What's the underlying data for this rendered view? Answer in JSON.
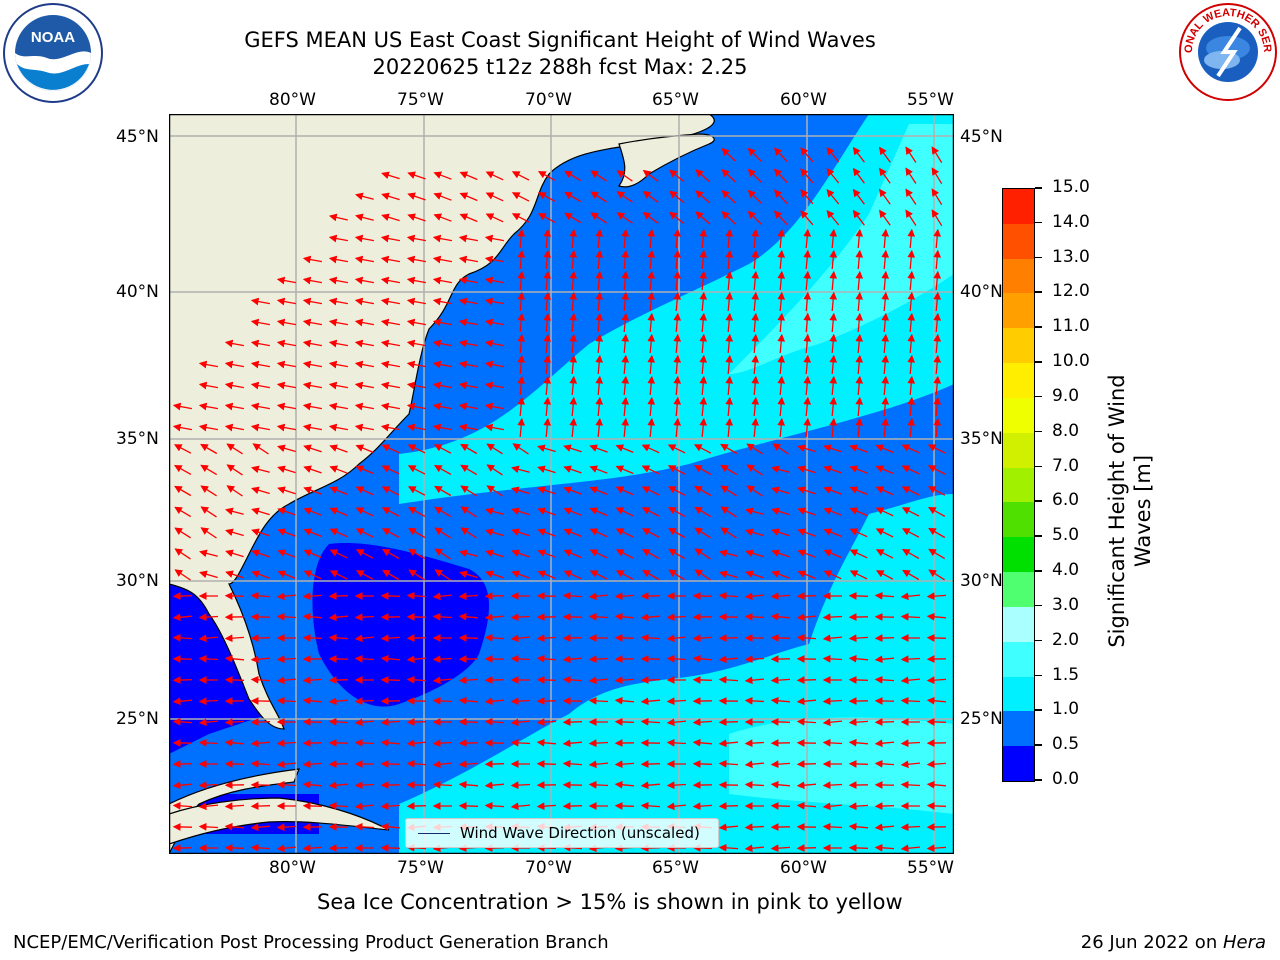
{
  "title": {
    "line1": "GEFS MEAN US East Coast Significant Height of Wind Waves",
    "line2": "20220625 t12z 288h fcst   Max: 2.25"
  },
  "logos": {
    "left": {
      "text": "NOAA",
      "icon": "noaa-logo"
    },
    "right": {
      "text": "NATIONAL WEATHER SERVICE",
      "icon": "nws-logo"
    }
  },
  "map": {
    "lon_labels": [
      "80°W",
      "75°W",
      "70°W",
      "65°W",
      "60°W",
      "55°W"
    ],
    "lat_labels": [
      "45°N",
      "40°N",
      "35°N",
      "30°N",
      "25°N"
    ],
    "legend_label": "Wind Wave Direction (unscaled)",
    "colors": {
      "land": "#eeeedc",
      "arrow": "#ff0000",
      "grid": "#b0b0b0",
      "coast": "#000000"
    }
  },
  "colorbar": {
    "label": "Significant Height of Wind Waves [m]",
    "ticks": [
      "0.0",
      "0.5",
      "1.0",
      "1.5",
      "2.0",
      "3.0",
      "4.0",
      "5.0",
      "6.0",
      "7.0",
      "8.0",
      "9.0",
      "10.0",
      "11.0",
      "12.0",
      "13.0",
      "14.0",
      "15.0"
    ],
    "colors": [
      "#0000ff",
      "#0070ff",
      "#00f0ff",
      "#40ffff",
      "#aaffff",
      "#50ff70",
      "#00e000",
      "#50e000",
      "#a0f000",
      "#d0f000",
      "#f0ff00",
      "#ffee00",
      "#ffcc00",
      "#ffa000",
      "#ff8000",
      "#ff5000",
      "#ff2000"
    ]
  },
  "caption": "Sea Ice Concentration > 15% is shown in pink to yellow",
  "footer": {
    "left": "NCEP/EMC/Verification Post Processing Product Generation Branch",
    "right_prefix": "26 Jun 2022 on ",
    "right_host": "Hera"
  }
}
